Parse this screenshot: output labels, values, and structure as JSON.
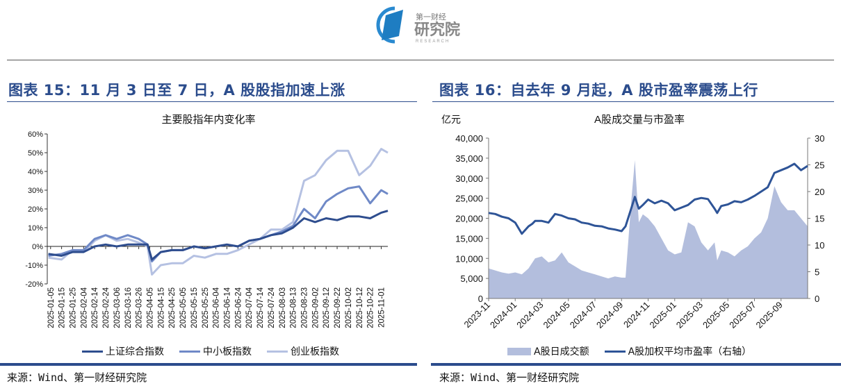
{
  "logo": {
    "text_cn_small": "第一财经",
    "text_cn_large": "研究院",
    "text_en": "RESEARCH"
  },
  "left": {
    "figure_title": "图表 15：11 月 3 日至 7 日，A 股股指加速上涨",
    "source": "来源：Wind、第一财经研究院"
  },
  "right": {
    "figure_title": "图表 16：自去年 9 月起，A 股市盈率震荡上行",
    "source": "来源：Wind、第一财经研究院"
  },
  "chart_data": [
    {
      "type": "line",
      "title": "主要股指年内变化率",
      "xlabel": "",
      "ylabel": "",
      "ylim": [
        -20,
        60
      ],
      "y_ticks": [
        "-20%",
        "-10%",
        "0%",
        "10%",
        "20%",
        "30%",
        "40%",
        "50%",
        "60%"
      ],
      "x_tick_labels": [
        "2025-01-05",
        "2025-01-15",
        "2025-01-25",
        "2025-02-04",
        "2025-02-14",
        "2025-02-24",
        "2025-03-06",
        "2025-03-16",
        "2025-03-26",
        "2025-04-05",
        "2025-04-15",
        "2025-04-25",
        "2025-05-05",
        "2025-05-15",
        "2025-05-25",
        "2025-06-04",
        "2025-06-14",
        "2025-06-24",
        "2025-07-04",
        "2025-07-14",
        "2025-07-24",
        "2025-08-03",
        "2025-08-13",
        "2025-08-23",
        "2025-09-02",
        "2025-09-12",
        "2025-09-22",
        "2025-10-02",
        "2025-10-12",
        "2025-10-22",
        "2025-11-01"
      ],
      "x": [
        "2025-01-03",
        "2025-01-15",
        "2025-01-25",
        "2025-02-04",
        "2025-02-14",
        "2025-02-24",
        "2025-03-06",
        "2025-03-16",
        "2025-03-26",
        "2025-04-03",
        "2025-04-07",
        "2025-04-15",
        "2025-04-25",
        "2025-05-05",
        "2025-05-15",
        "2025-05-25",
        "2025-06-04",
        "2025-06-14",
        "2025-06-24",
        "2025-07-04",
        "2025-07-14",
        "2025-07-24",
        "2025-08-03",
        "2025-08-13",
        "2025-08-23",
        "2025-09-02",
        "2025-09-12",
        "2025-09-22",
        "2025-10-02",
        "2025-10-12",
        "2025-10-22",
        "2025-11-01",
        "2025-11-07"
      ],
      "series": [
        {
          "name": "上证综合指数",
          "color": "#2E4D8E",
          "values": [
            -4,
            -5,
            -3,
            -3,
            0,
            1,
            0,
            1,
            1,
            1,
            -7,
            -3,
            -2,
            -2,
            0,
            -1,
            0,
            1,
            0,
            3,
            4,
            6,
            7,
            10,
            15,
            13,
            15,
            14,
            16,
            16,
            15,
            18,
            19
          ]
        },
        {
          "name": "中小板指数",
          "color": "#6F89C7",
          "values": [
            -5,
            -4,
            -2,
            -2,
            4,
            6,
            4,
            6,
            4,
            1,
            -8,
            -3,
            -2,
            -2,
            0,
            -1,
            0,
            1,
            0,
            3,
            4,
            6,
            8,
            11,
            20,
            15,
            24,
            28,
            31,
            32,
            23,
            30,
            28
          ]
        },
        {
          "name": "创业板指数",
          "color": "#B5C1E2",
          "values": [
            -6,
            -7,
            -2,
            -3,
            3,
            6,
            3,
            4,
            2,
            0,
            -15,
            -10,
            -9,
            -9,
            -5,
            -6,
            -4,
            -4,
            -2,
            1,
            4,
            9,
            9,
            13,
            35,
            38,
            46,
            51,
            51,
            38,
            43,
            52,
            50
          ]
        }
      ],
      "legend": "bottom"
    },
    {
      "type": "area",
      "title": "A股成交量与市盈率",
      "ylabel": "亿元",
      "ylim": [
        0,
        40000
      ],
      "y2lim": [
        0,
        30
      ],
      "y_ticks": [
        "0",
        "5,000",
        "10,000",
        "15,000",
        "20,000",
        "25,000",
        "30,000",
        "35,000",
        "40,000"
      ],
      "y2_ticks": [
        "0",
        "5",
        "10",
        "15",
        "20",
        "25",
        "30"
      ],
      "x_tick_labels": [
        "2023-11",
        "2024-01",
        "2024-03",
        "2024-05",
        "2024-07",
        "2024-09",
        "2024-11",
        "2025-01",
        "2025-03",
        "2025-05",
        "2025-07",
        "2025-09"
      ],
      "x_months_since_2023_11": [
        0,
        0.5,
        1,
        1.5,
        2,
        2.5,
        3,
        3.3,
        3.5,
        4,
        4.5,
        5,
        5.5,
        6,
        6.5,
        7,
        7.5,
        8,
        8.5,
        9,
        9.5,
        10,
        10.3,
        10.75,
        11,
        11.3,
        11.6,
        12,
        12.5,
        13,
        13.5,
        14,
        14.5,
        15,
        15.5,
        16,
        16.5,
        17,
        17.2,
        17.5,
        18,
        18.5,
        19,
        19.5,
        20,
        20.5,
        21,
        21.5,
        22,
        22.5,
        23,
        23.5,
        24
      ],
      "series": [
        {
          "name": "A股日成交额",
          "type": "area",
          "color": "#B3BEDD",
          "axis": "left",
          "values": [
            7500,
            7000,
            6500,
            6200,
            6500,
            6000,
            7500,
            9000,
            10000,
            10500,
            9000,
            9500,
            11500,
            9000,
            8000,
            7000,
            6500,
            6000,
            5500,
            5000,
            5500,
            5200,
            5200,
            25000,
            34500,
            19000,
            21000,
            20000,
            18000,
            15000,
            12000,
            11000,
            11500,
            19000,
            18000,
            14000,
            12000,
            14000,
            9500,
            12000,
            11500,
            10500,
            12000,
            13000,
            15000,
            16500,
            20000,
            28000,
            24000,
            22000,
            22000,
            20000,
            18000
          ]
        },
        {
          "name": "A股加权平均市盈率（右轴）",
          "type": "line",
          "color": "#2E5497",
          "axis": "right",
          "values": [
            16,
            15.8,
            15.3,
            15,
            14.2,
            12.1,
            13.5,
            14,
            14.5,
            14.5,
            14.2,
            15.8,
            15.5,
            15,
            14.8,
            14.2,
            14,
            13.6,
            13.5,
            13.1,
            12.9,
            12.6,
            13.5,
            17,
            19,
            16.8,
            17.5,
            18.5,
            17.8,
            18.3,
            17.8,
            16.5,
            17,
            17.5,
            18.5,
            18.8,
            18.6,
            16.8,
            16,
            17.3,
            17.6,
            18.2,
            18,
            18.5,
            19.2,
            20,
            20.8,
            23.5,
            24,
            24.5,
            25.2,
            24,
            24.8
          ]
        }
      ],
      "legend": "bottom"
    }
  ]
}
